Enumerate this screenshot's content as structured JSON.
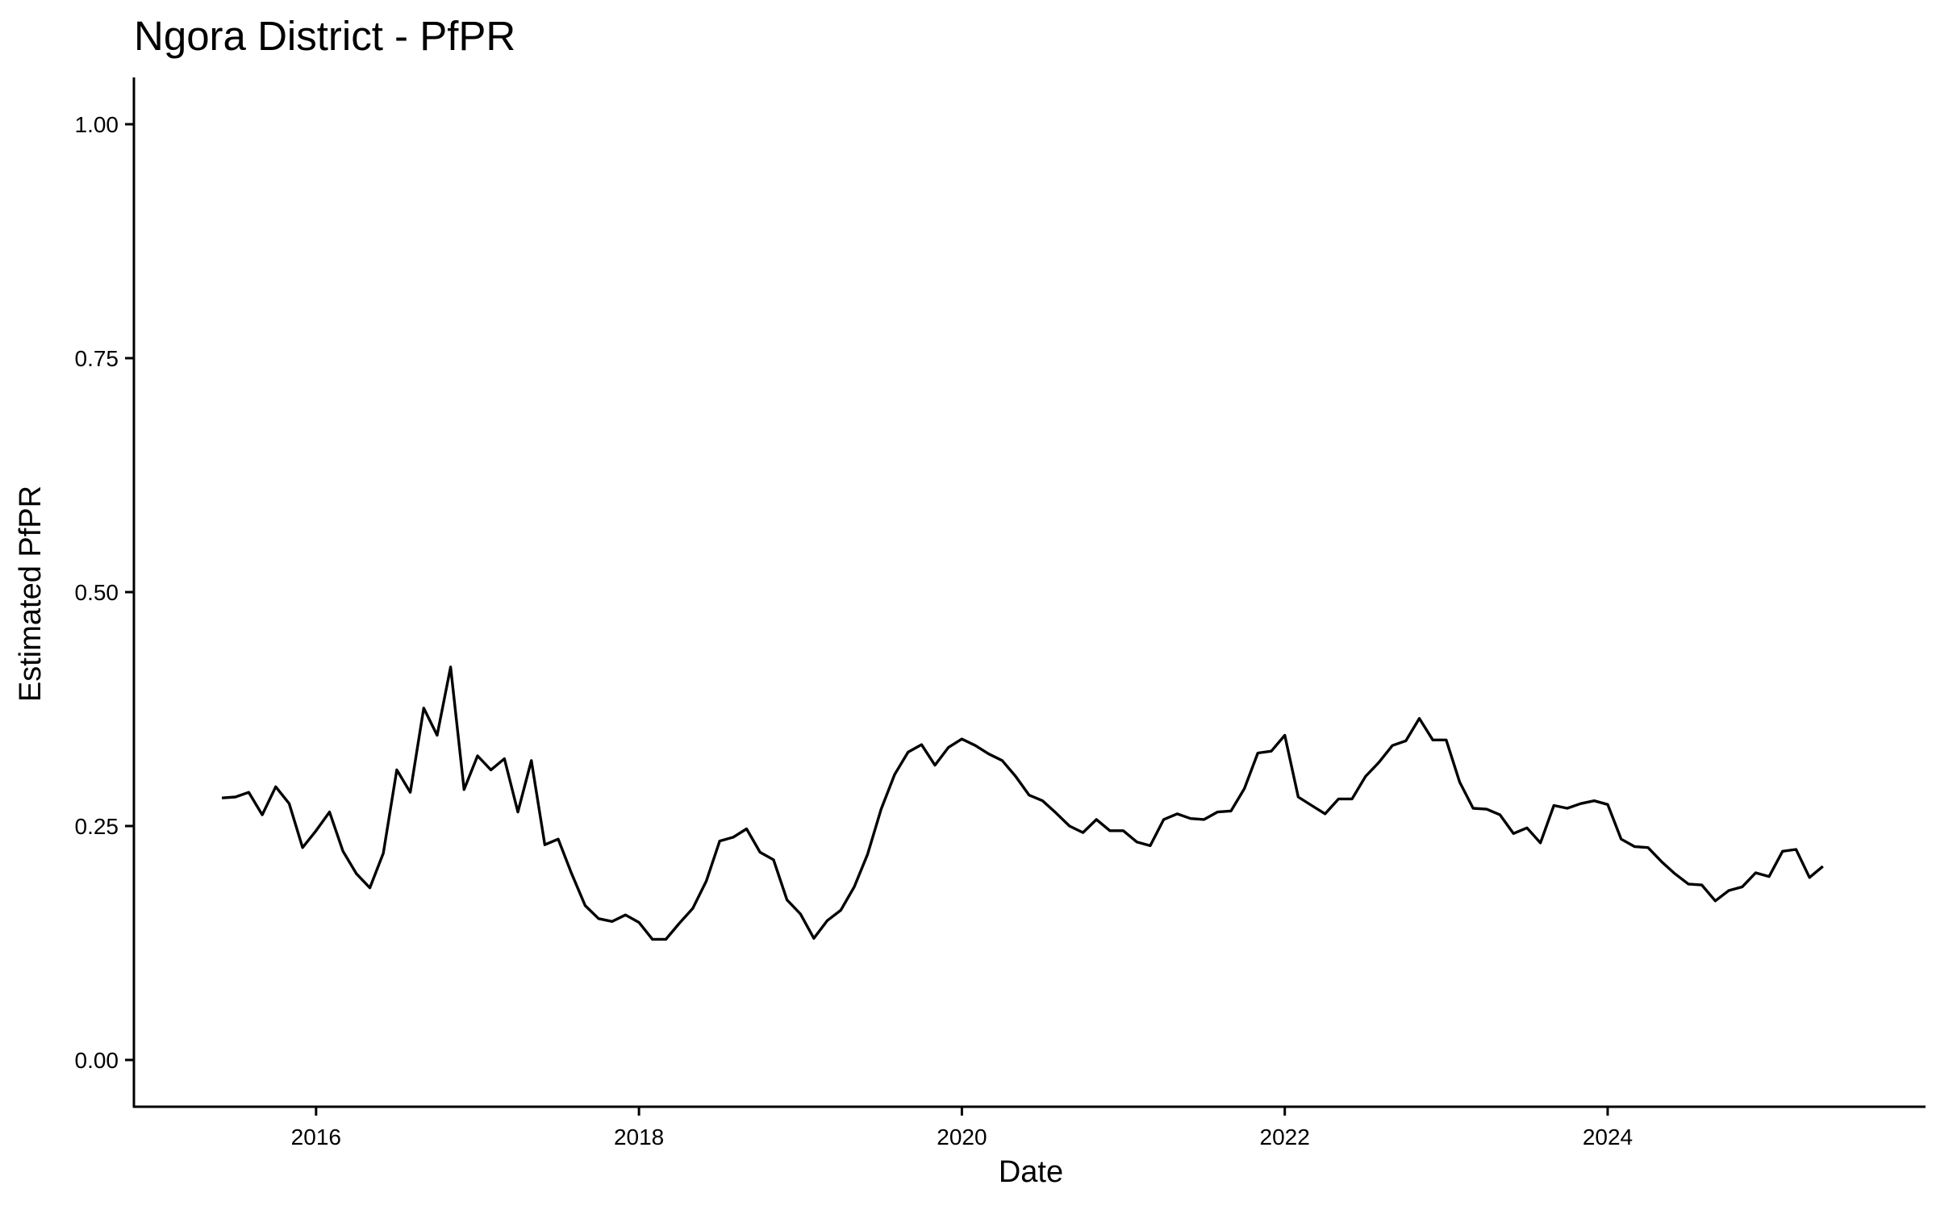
{
  "chart_data": {
    "type": "line",
    "title": "Ngora District - PfPR",
    "xlabel": "Date",
    "ylabel": "Estimated PfPR",
    "xlim": [
      "2014-11-15",
      "2025-12-20"
    ],
    "ylim": [
      -0.05,
      1.05
    ],
    "x_ticks": [
      "2016",
      "2018",
      "2020",
      "2022",
      "2024"
    ],
    "y_ticks": [
      "0.00",
      "0.25",
      "0.50",
      "0.75",
      "1.00"
    ],
    "grid": false,
    "series": [
      {
        "points": [
          [
            "2015-06",
            0.28
          ],
          [
            "2015-07",
            0.281
          ],
          [
            "2015-08",
            0.286
          ],
          [
            "2015-09",
            0.262
          ],
          [
            "2015-10",
            0.292
          ],
          [
            "2015-11",
            0.274
          ],
          [
            "2015-12",
            0.227
          ],
          [
            "2016-01",
            0.245
          ],
          [
            "2016-02",
            0.265
          ],
          [
            "2016-03",
            0.223
          ],
          [
            "2016-04",
            0.199
          ],
          [
            "2016-05",
            0.184
          ],
          [
            "2016-06",
            0.221
          ],
          [
            "2016-07",
            0.31
          ],
          [
            "2016-08",
            0.286
          ],
          [
            "2016-09",
            0.376
          ],
          [
            "2016-10",
            0.347
          ],
          [
            "2016-11",
            0.42
          ],
          [
            "2016-12",
            0.289
          ],
          [
            "2017-01",
            0.325
          ],
          [
            "2017-02",
            0.31
          ],
          [
            "2017-03",
            0.322
          ],
          [
            "2017-04",
            0.265
          ],
          [
            "2017-05",
            0.32
          ],
          [
            "2017-06",
            0.23
          ],
          [
            "2017-07",
            0.236
          ],
          [
            "2017-08",
            0.199
          ],
          [
            "2017-09",
            0.165
          ],
          [
            "2017-10",
            0.151
          ],
          [
            "2017-11",
            0.148
          ],
          [
            "2017-12",
            0.155
          ],
          [
            "2018-01",
            0.147
          ],
          [
            "2018-02",
            0.129
          ],
          [
            "2018-03",
            0.129
          ],
          [
            "2018-04",
            0.146
          ],
          [
            "2018-05",
            0.162
          ],
          [
            "2018-06",
            0.191
          ],
          [
            "2018-07",
            0.234
          ],
          [
            "2018-08",
            0.238
          ],
          [
            "2018-09",
            0.247
          ],
          [
            "2018-10",
            0.222
          ],
          [
            "2018-11",
            0.214
          ],
          [
            "2018-12",
            0.171
          ],
          [
            "2019-01",
            0.156
          ],
          [
            "2019-02",
            0.13
          ],
          [
            "2019-03",
            0.149
          ],
          [
            "2019-04",
            0.16
          ],
          [
            "2019-05",
            0.185
          ],
          [
            "2019-06",
            0.22
          ],
          [
            "2019-07",
            0.268
          ],
          [
            "2019-08",
            0.305
          ],
          [
            "2019-09",
            0.329
          ],
          [
            "2019-10",
            0.337
          ],
          [
            "2019-11",
            0.315
          ],
          [
            "2019-12",
            0.334
          ],
          [
            "2020-01",
            0.343
          ],
          [
            "2020-02",
            0.336
          ],
          [
            "2020-03",
            0.327
          ],
          [
            "2020-04",
            0.32
          ],
          [
            "2020-05",
            0.303
          ],
          [
            "2020-06",
            0.283
          ],
          [
            "2020-07",
            0.277
          ],
          [
            "2020-08",
            0.264
          ],
          [
            "2020-09",
            0.25
          ],
          [
            "2020-10",
            0.243
          ],
          [
            "2020-11",
            0.257
          ],
          [
            "2020-12",
            0.245
          ],
          [
            "2021-01",
            0.245
          ],
          [
            "2021-02",
            0.233
          ],
          [
            "2021-03",
            0.229
          ],
          [
            "2021-04",
            0.257
          ],
          [
            "2021-05",
            0.263
          ],
          [
            "2021-06",
            0.258
          ],
          [
            "2021-07",
            0.257
          ],
          [
            "2021-08",
            0.265
          ],
          [
            "2021-09",
            0.266
          ],
          [
            "2021-10",
            0.29
          ],
          [
            "2021-11",
            0.328
          ],
          [
            "2021-12",
            0.33
          ],
          [
            "2022-01",
            0.347
          ],
          [
            "2022-02",
            0.281
          ],
          [
            "2022-03",
            0.272
          ],
          [
            "2022-04",
            0.263
          ],
          [
            "2022-05",
            0.279
          ],
          [
            "2022-06",
            0.279
          ],
          [
            "2022-07",
            0.303
          ],
          [
            "2022-08",
            0.318
          ],
          [
            "2022-09",
            0.336
          ],
          [
            "2022-10",
            0.341
          ],
          [
            "2022-11",
            0.365
          ],
          [
            "2022-12",
            0.342
          ],
          [
            "2023-01",
            0.342
          ],
          [
            "2023-02",
            0.297
          ],
          [
            "2023-03",
            0.269
          ],
          [
            "2023-04",
            0.268
          ],
          [
            "2023-05",
            0.262
          ],
          [
            "2023-06",
            0.242
          ],
          [
            "2023-07",
            0.248
          ],
          [
            "2023-08",
            0.232
          ],
          [
            "2023-09",
            0.272
          ],
          [
            "2023-10",
            0.269
          ],
          [
            "2023-11",
            0.274
          ],
          [
            "2023-12",
            0.277
          ],
          [
            "2024-01",
            0.273
          ],
          [
            "2024-02",
            0.236
          ],
          [
            "2024-03",
            0.228
          ],
          [
            "2024-04",
            0.227
          ],
          [
            "2024-05",
            0.212
          ],
          [
            "2024-06",
            0.199
          ],
          [
            "2024-07",
            0.188
          ],
          [
            "2024-08",
            0.187
          ],
          [
            "2024-09",
            0.17
          ],
          [
            "2024-10",
            0.181
          ],
          [
            "2024-11",
            0.185
          ],
          [
            "2024-12",
            0.2
          ],
          [
            "2025-01",
            0.196
          ],
          [
            "2025-02",
            0.223
          ],
          [
            "2025-03",
            0.225
          ],
          [
            "2025-04",
            0.195
          ],
          [
            "2025-05",
            0.207
          ]
        ]
      }
    ]
  }
}
